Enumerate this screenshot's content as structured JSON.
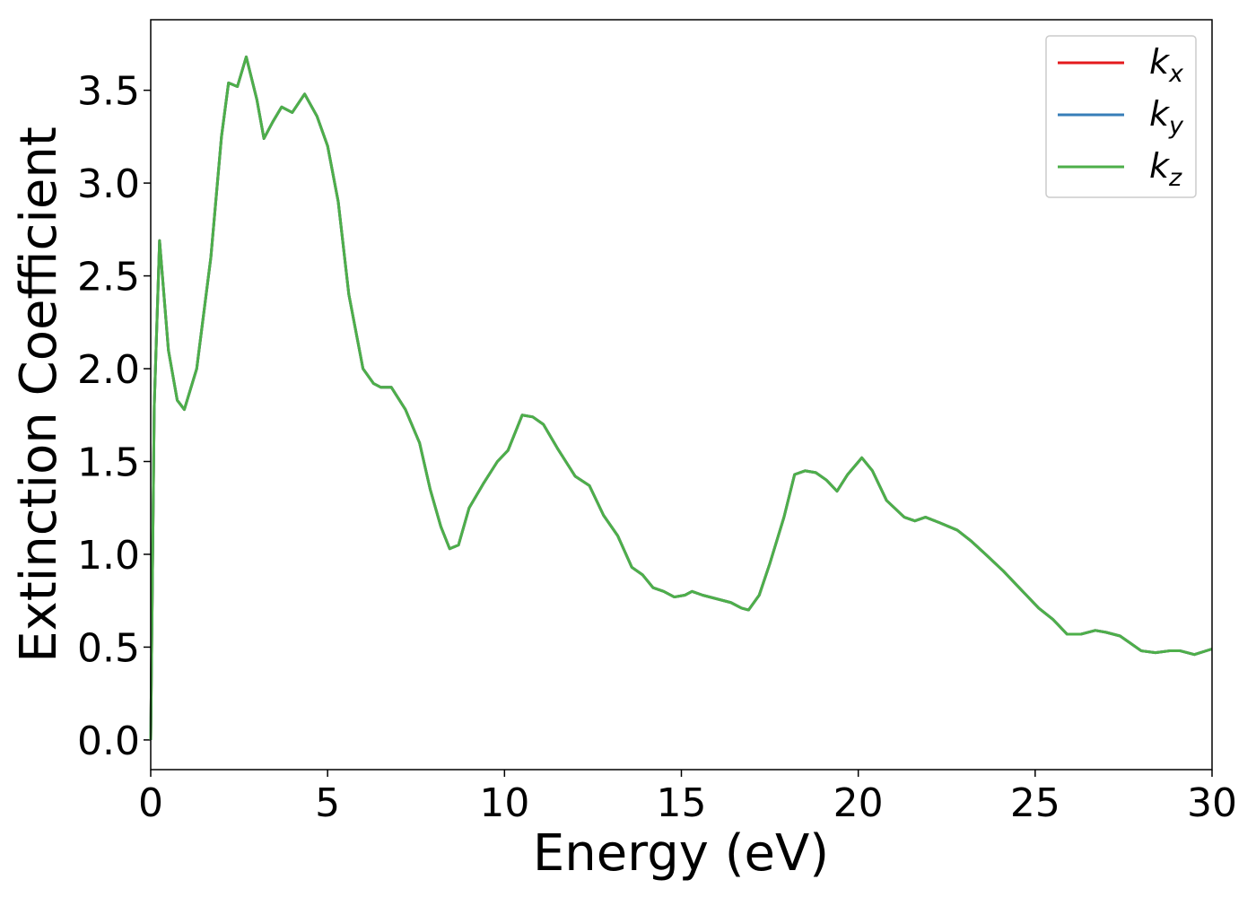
{
  "chart_data": {
    "type": "line",
    "xlabel": "Energy (eV)",
    "ylabel": "Extinction Coefficient",
    "x": [
      0,
      0.1,
      0.25,
      0.5,
      0.75,
      0.95,
      1.3,
      1.7,
      2.0,
      2.2,
      2.45,
      2.7,
      3.0,
      3.2,
      3.45,
      3.7,
      4.0,
      4.35,
      4.7,
      5.0,
      5.3,
      5.6,
      6.0,
      6.3,
      6.5,
      6.8,
      7.2,
      7.6,
      7.9,
      8.2,
      8.45,
      8.7,
      9.0,
      9.4,
      9.8,
      10.1,
      10.5,
      10.8,
      11.1,
      11.5,
      12.0,
      12.4,
      12.8,
      13.2,
      13.6,
      13.9,
      14.2,
      14.5,
      14.8,
      15.1,
      15.3,
      15.6,
      16.0,
      16.4,
      16.7,
      16.9,
      17.2,
      17.5,
      17.9,
      18.2,
      18.5,
      18.8,
      19.1,
      19.4,
      19.7,
      20.1,
      20.4,
      20.8,
      21.3,
      21.6,
      21.9,
      22.3,
      22.8,
      23.2,
      23.6,
      24.1,
      24.6,
      25.1,
      25.5,
      25.9,
      26.3,
      26.7,
      27.0,
      27.4,
      27.7,
      28.0,
      28.4,
      28.8,
      29.1,
      29.5,
      30.0
    ],
    "series": [
      {
        "name": "kx",
        "color": "#e41a1c",
        "values": [
          0.0,
          1.8,
          2.69,
          2.1,
          1.83,
          1.78,
          2.0,
          2.6,
          3.25,
          3.54,
          3.52,
          3.68,
          3.45,
          3.24,
          3.33,
          3.41,
          3.38,
          3.48,
          3.36,
          3.2,
          2.9,
          2.4,
          2.0,
          1.92,
          1.9,
          1.9,
          1.78,
          1.6,
          1.35,
          1.15,
          1.03,
          1.05,
          1.25,
          1.38,
          1.5,
          1.56,
          1.75,
          1.74,
          1.7,
          1.57,
          1.42,
          1.37,
          1.21,
          1.1,
          0.93,
          0.89,
          0.82,
          0.8,
          0.77,
          0.78,
          0.8,
          0.78,
          0.76,
          0.74,
          0.71,
          0.7,
          0.78,
          0.95,
          1.2,
          1.43,
          1.45,
          1.44,
          1.4,
          1.34,
          1.43,
          1.52,
          1.45,
          1.29,
          1.2,
          1.18,
          1.2,
          1.17,
          1.13,
          1.07,
          1.0,
          0.91,
          0.81,
          0.71,
          0.65,
          0.57,
          0.57,
          0.59,
          0.58,
          0.56,
          0.52,
          0.48,
          0.47,
          0.48,
          0.48,
          0.46,
          0.49
        ]
      },
      {
        "name": "ky",
        "color": "#377eb8",
        "values": [
          0.0,
          1.8,
          2.69,
          2.1,
          1.83,
          1.78,
          2.0,
          2.6,
          3.25,
          3.54,
          3.52,
          3.68,
          3.45,
          3.24,
          3.33,
          3.41,
          3.38,
          3.48,
          3.36,
          3.2,
          2.9,
          2.4,
          2.0,
          1.92,
          1.9,
          1.9,
          1.78,
          1.6,
          1.35,
          1.15,
          1.03,
          1.05,
          1.25,
          1.38,
          1.5,
          1.56,
          1.75,
          1.74,
          1.7,
          1.57,
          1.42,
          1.37,
          1.21,
          1.1,
          0.93,
          0.89,
          0.82,
          0.8,
          0.77,
          0.78,
          0.8,
          0.78,
          0.76,
          0.74,
          0.71,
          0.7,
          0.78,
          0.95,
          1.2,
          1.43,
          1.45,
          1.44,
          1.4,
          1.34,
          1.43,
          1.52,
          1.45,
          1.29,
          1.2,
          1.18,
          1.2,
          1.17,
          1.13,
          1.07,
          1.0,
          0.91,
          0.81,
          0.71,
          0.65,
          0.57,
          0.57,
          0.59,
          0.58,
          0.56,
          0.52,
          0.48,
          0.47,
          0.48,
          0.48,
          0.46,
          0.49
        ]
      },
      {
        "name": "kz",
        "color": "#4daf4a",
        "values": [
          0.0,
          1.8,
          2.69,
          2.1,
          1.83,
          1.78,
          2.0,
          2.6,
          3.25,
          3.54,
          3.52,
          3.68,
          3.45,
          3.24,
          3.33,
          3.41,
          3.38,
          3.48,
          3.36,
          3.2,
          2.9,
          2.4,
          2.0,
          1.92,
          1.9,
          1.9,
          1.78,
          1.6,
          1.35,
          1.15,
          1.03,
          1.05,
          1.25,
          1.38,
          1.5,
          1.56,
          1.75,
          1.74,
          1.7,
          1.57,
          1.42,
          1.37,
          1.21,
          1.1,
          0.93,
          0.89,
          0.82,
          0.8,
          0.77,
          0.78,
          0.8,
          0.78,
          0.76,
          0.74,
          0.71,
          0.7,
          0.78,
          0.95,
          1.2,
          1.43,
          1.45,
          1.44,
          1.4,
          1.34,
          1.43,
          1.52,
          1.45,
          1.29,
          1.2,
          1.18,
          1.2,
          1.17,
          1.13,
          1.07,
          1.0,
          0.91,
          0.81,
          0.71,
          0.65,
          0.57,
          0.57,
          0.59,
          0.58,
          0.56,
          0.52,
          0.48,
          0.47,
          0.48,
          0.48,
          0.46,
          0.49
        ]
      }
    ],
    "xlim": [
      0,
      30
    ],
    "xticks": [
      0,
      5,
      10,
      15,
      20,
      25,
      30
    ],
    "ylim": [
      -0.16,
      3.88
    ],
    "yticks": [
      {
        "value": 0,
        "label": "0.0"
      },
      0.5,
      {
        "value": 1,
        "label": "1.0"
      },
      1.5,
      {
        "value": 2,
        "label": "2.0"
      },
      2.5,
      {
        "value": 3,
        "label": "3.0"
      },
      3.5
    ],
    "grid": false,
    "legend": "upper right"
  }
}
